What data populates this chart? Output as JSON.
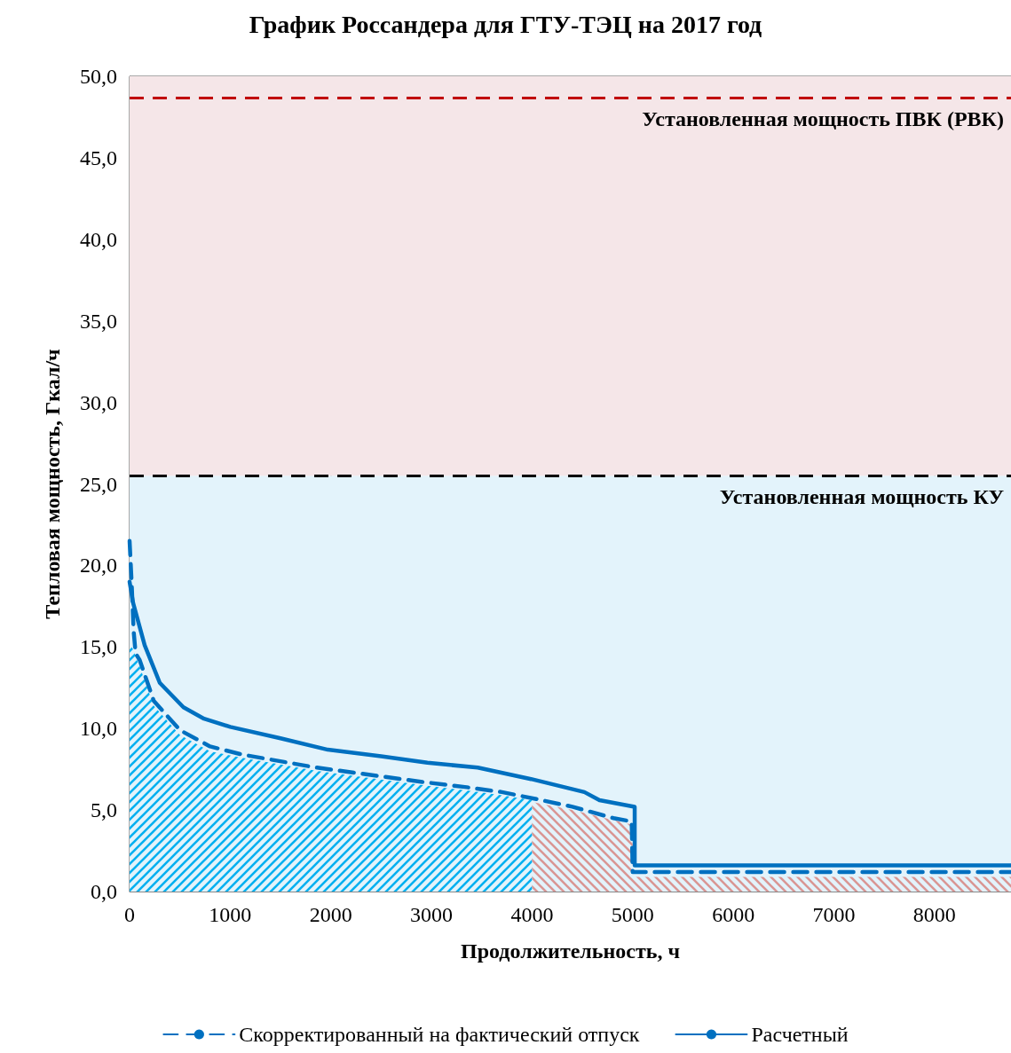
{
  "chart_data": {
    "type": "line",
    "title": "График Россандера для ГТУ-ТЭЦ на 2017 год",
    "xlabel": "Продолжительность, ч",
    "ylabel": "Тепловая мощность, Гкал/ч",
    "xlim": [
      0,
      8760
    ],
    "xticks": [
      0,
      1000,
      2000,
      3000,
      4000,
      5000,
      6000,
      7000,
      8000
    ],
    "ylim": [
      0,
      50
    ],
    "yticks": [
      {
        "value": 0,
        "label": "0,0"
      },
      {
        "value": 5,
        "label": "5,0"
      },
      {
        "value": 10,
        "label": "10,0"
      },
      {
        "value": 15,
        "label": "15,0"
      },
      {
        "value": 20,
        "label": "20,0"
      },
      {
        "value": 25,
        "label": "25,0"
      },
      {
        "value": 30,
        "label": "30,0"
      },
      {
        "value": 35,
        "label": "35,0"
      },
      {
        "value": 40,
        "label": "40,0"
      },
      {
        "value": 45,
        "label": "45,0"
      },
      {
        "value": 50,
        "label": "50,0"
      }
    ],
    "grid": true,
    "legend": "bottom",
    "marker": "none",
    "bands": [
      {
        "axis": "y",
        "from": 0,
        "to": 25.5,
        "color": "#e3f3fb"
      },
      {
        "axis": "y",
        "from": 25.5,
        "to": 50,
        "color": "#f5e6e8"
      }
    ],
    "ref_lines": [
      {
        "axis": "y",
        "value": 48.7,
        "label": "Установленная мощность ПВК (РВК)",
        "color": "#c00000",
        "line_style": "dashed"
      },
      {
        "axis": "y",
        "value": 25.5,
        "label": "Установленная мощность КУ",
        "color": "#000000",
        "line_style": "dashed"
      }
    ],
    "series": [
      {
        "type": "area",
        "color": "#00b0f0",
        "x": [
          0,
          20,
          40,
          60,
          100,
          240,
          500,
          800,
          1120,
          1860,
          2940,
          3350,
          3700,
          4000
        ],
        "values": [
          15.2,
          15.0,
          14.8,
          14.4,
          13.8,
          11.4,
          9.6,
          8.6,
          8.2,
          7.4,
          6.5,
          6.2,
          5.9,
          5.6
        ]
      },
      {
        "type": "area",
        "color": "#d99694",
        "x": [
          4000,
          4400,
          4800,
          5000,
          5000,
          8760
        ],
        "values": [
          5.5,
          5.0,
          4.4,
          4.1,
          0.9,
          0.9
        ]
      },
      {
        "name": "Скорректированный на фактический отпуск",
        "color": "#0070c0",
        "line_style": "dashed",
        "x": [
          0,
          20,
          40,
          60,
          100,
          240,
          500,
          800,
          1120,
          1860,
          2940,
          3350,
          3700,
          4020,
          4400,
          4810,
          4990,
          5000,
          8760
        ],
        "values": [
          21.5,
          19.0,
          16.0,
          14.6,
          14.2,
          11.7,
          9.9,
          8.9,
          8.4,
          7.6,
          6.7,
          6.4,
          6.1,
          5.7,
          5.2,
          4.5,
          4.3,
          1.2,
          1.2
        ]
      },
      {
        "name": "Расчетный",
        "color": "#0070c0",
        "line_style": "solid",
        "x": [
          0,
          35,
          150,
          300,
          535,
          740,
          1000,
          1500,
          1970,
          2500,
          2960,
          3460,
          3990,
          4520,
          4670,
          5020,
          5020,
          8760
        ],
        "values": [
          19.0,
          17.7,
          15.1,
          12.8,
          11.3,
          10.6,
          10.1,
          9.4,
          8.7,
          8.3,
          7.9,
          7.6,
          6.9,
          6.1,
          5.6,
          5.2,
          1.6,
          1.6
        ]
      }
    ]
  }
}
